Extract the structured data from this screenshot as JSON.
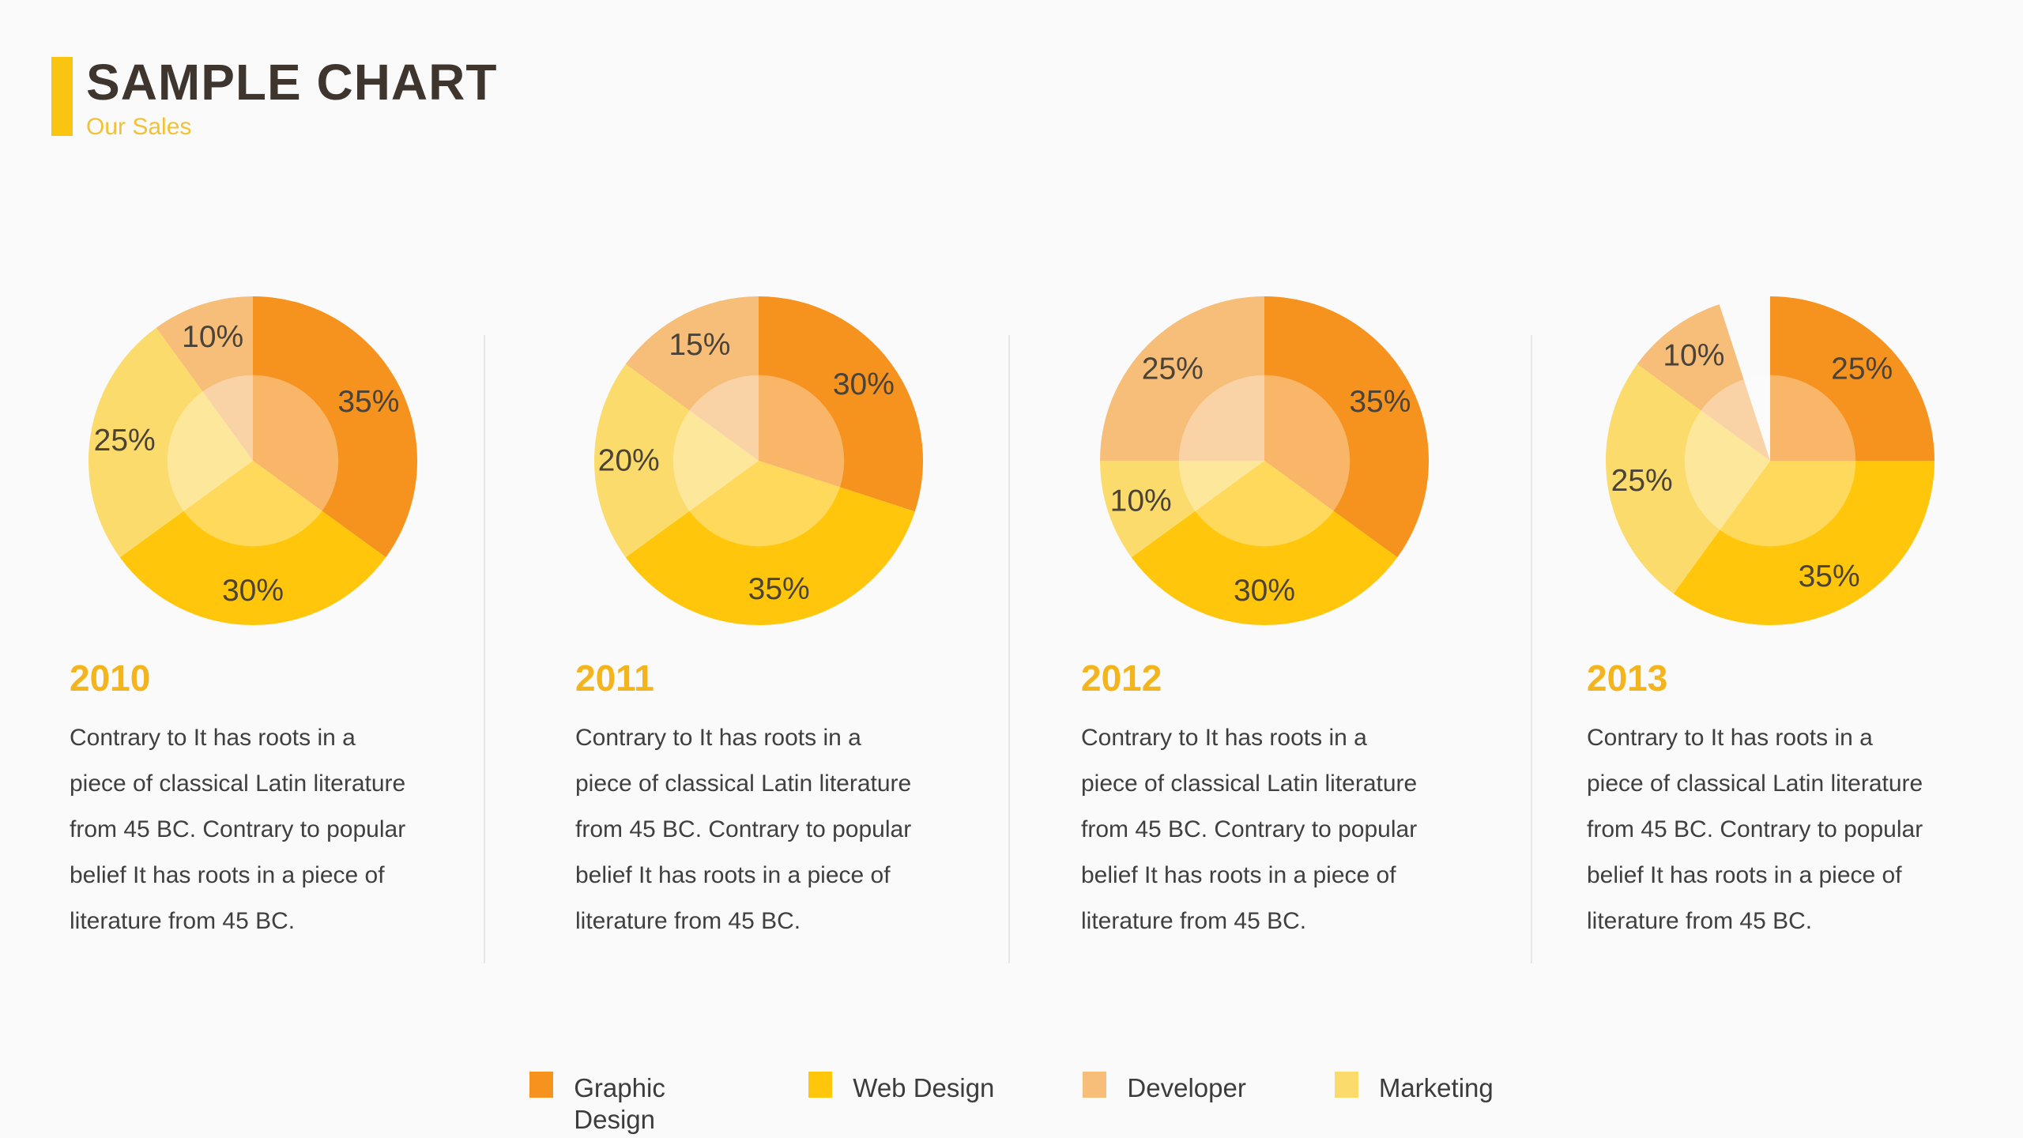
{
  "header": {
    "title": "SAMPLE CHART",
    "subtitle": "Our Sales"
  },
  "palette": {
    "graphic_design": "#F6921E",
    "web_design": "#FFC60B",
    "developer": "#F6BE79",
    "marketing": "#FBDB6B",
    "year_heading": "#F3B41E",
    "subtitle_gold": "#F0C236",
    "title_bar": "#F9C511",
    "title_text": "#3E362E",
    "body_text": "#3F3F3F",
    "pct_label": "#4B4337",
    "background": "#FAFAFA",
    "divider": "#E6E6E6"
  },
  "chart_data": [
    {
      "type": "pie",
      "year": "2010",
      "segments": [
        {
          "name": "Graphic Design",
          "value": 35,
          "color": "graphic_design"
        },
        {
          "name": "Web Design",
          "value": 30,
          "color": "web_design"
        },
        {
          "name": "Marketing",
          "value": 25,
          "color": "marketing"
        },
        {
          "name": "Developer",
          "value": 10,
          "color": "developer"
        }
      ],
      "labels": [
        "35%",
        "30%",
        "25%",
        "10%"
      ],
      "description": "Contrary to It has roots in a piece of classical Latin literature from 45 BC. Contrary to popular belief It has roots in a piece of literature from 45 BC."
    },
    {
      "type": "pie",
      "year": "2011",
      "segments": [
        {
          "name": "Graphic Design",
          "value": 30,
          "color": "graphic_design"
        },
        {
          "name": "Web Design",
          "value": 35,
          "color": "web_design"
        },
        {
          "name": "Marketing",
          "value": 20,
          "color": "marketing"
        },
        {
          "name": "Developer",
          "value": 15,
          "color": "developer"
        }
      ],
      "labels": [
        "30%",
        "35%",
        "20%",
        "15%"
      ],
      "description": "Contrary to It has roots in a piece of classical Latin literature from 45 BC. Contrary to popular belief It has roots in a piece of literature from 45 BC."
    },
    {
      "type": "pie",
      "year": "2012",
      "segments": [
        {
          "name": "Graphic Design",
          "value": 35,
          "color": "graphic_design"
        },
        {
          "name": "Web Design",
          "value": 30,
          "color": "web_design"
        },
        {
          "name": "Marketing",
          "value": 10,
          "color": "marketing"
        },
        {
          "name": "Developer",
          "value": 25,
          "color": "developer"
        }
      ],
      "labels": [
        "35%",
        "30%",
        "10%",
        "25%"
      ],
      "description": "Contrary to It has roots in a piece of classical Latin literature from 45 BC. Contrary to popular belief It has roots in a piece of literature from 45 BC."
    },
    {
      "type": "pie",
      "year": "2013",
      "segments": [
        {
          "name": "Graphic Design",
          "value": 25,
          "color": "graphic_design"
        },
        {
          "name": "Web Design",
          "value": 35,
          "color": "web_design"
        },
        {
          "name": "Marketing",
          "value": 25,
          "color": "marketing"
        },
        {
          "name": "Developer",
          "value": 10,
          "color": "developer"
        }
      ],
      "labels": [
        "25%",
        "35%",
        "25%",
        "10%"
      ],
      "description": "Contrary to It has roots in a piece of classical Latin literature from 45 BC. Contrary to popular belief It has roots in a piece of literature from 45 BC."
    }
  ],
  "legend": {
    "items": [
      {
        "label": "Graphic Design",
        "color": "graphic_design"
      },
      {
        "label": "Web Design",
        "color": "web_design"
      },
      {
        "label": "Developer",
        "color": "developer"
      },
      {
        "label": "Marketing",
        "color": "marketing"
      }
    ]
  }
}
